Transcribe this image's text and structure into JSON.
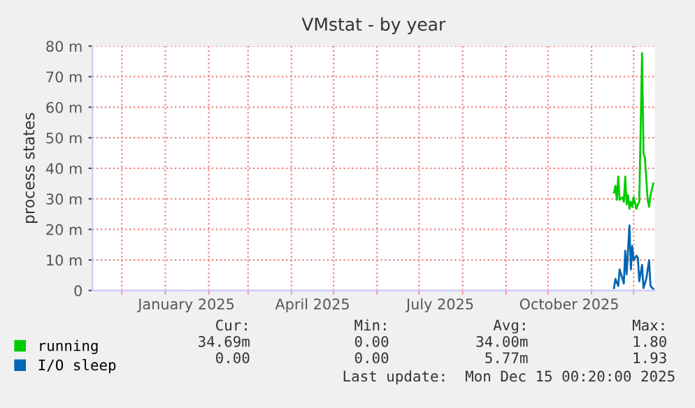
{
  "chart_data": {
    "type": "line",
    "title": "VMstat - by year",
    "ylabel": "process states",
    "xlim": [
      "2024-11-10",
      "2025-12-16"
    ],
    "xticks": [
      {
        "value": "2024-12-01",
        "label": null
      },
      {
        "value": "2025-01-01",
        "label": null
      },
      {
        "value": "2025-01-16",
        "label": "January 2025"
      },
      {
        "value": "2025-02-01",
        "label": null
      },
      {
        "value": "2025-03-01",
        "label": null
      },
      {
        "value": "2025-04-01",
        "label": null
      },
      {
        "value": "2025-04-16",
        "label": "April 2025"
      },
      {
        "value": "2025-05-01",
        "label": null
      },
      {
        "value": "2025-06-01",
        "label": null
      },
      {
        "value": "2025-07-01",
        "label": null
      },
      {
        "value": "2025-07-16",
        "label": "July 2025"
      },
      {
        "value": "2025-08-01",
        "label": null
      },
      {
        "value": "2025-09-01",
        "label": null
      },
      {
        "value": "2025-10-01",
        "label": null
      },
      {
        "value": "2025-10-16",
        "label": "October 2025"
      },
      {
        "value": "2025-11-01",
        "label": null
      },
      {
        "value": "2025-12-01",
        "label": null
      }
    ],
    "ylim": [
      0,
      80
    ],
    "yticks": [
      0,
      {
        "value": 10,
        "label": "10 m"
      },
      {
        "value": 20,
        "label": "20 m"
      },
      {
        "value": 30,
        "label": "30 m"
      },
      {
        "value": 40,
        "label": "40 m"
      },
      {
        "value": 50,
        "label": "50 m"
      },
      {
        "value": 60,
        "label": "60 m"
      },
      {
        "value": 70,
        "label": "70 m"
      },
      {
        "value": 80,
        "label": "80 m"
      }
    ],
    "grid": true,
    "legend": "bottom",
    "series": [
      {
        "name": "running",
        "color": "#00cc00",
        "x": [
          "2025-11-17",
          "2025-11-18",
          "2025-11-19",
          "2025-11-20",
          "2025-11-21",
          "2025-11-23",
          "2025-11-24",
          "2025-11-25",
          "2025-11-26",
          "2025-11-27",
          "2025-11-28",
          "2025-11-29",
          "2025-11-30",
          "2025-12-01",
          "2025-12-03",
          "2025-12-04",
          "2025-12-05",
          "2025-12-07",
          "2025-12-08",
          "2025-12-09",
          "2025-12-11",
          "2025-12-12",
          "2025-12-13",
          "2025-12-15"
        ],
        "values": [
          32,
          34.3,
          29.7,
          37.3,
          29.7,
          30.5,
          29,
          37.3,
          28.2,
          31.2,
          26.7,
          29,
          27.4,
          30.5,
          26.7,
          28.2,
          29,
          77.7,
          45,
          43.4,
          29.7,
          27.4,
          31.2,
          35
        ]
      },
      {
        "name": "I/O sleep",
        "color": "#0066b3",
        "x": [
          "2025-11-17",
          "2025-11-18",
          "2025-11-20",
          "2025-11-21",
          "2025-11-24",
          "2025-11-25",
          "2025-11-26",
          "2025-11-28",
          "2025-11-29",
          "2025-11-30",
          "2025-12-01",
          "2025-12-03",
          "2025-12-04",
          "2025-12-05",
          "2025-12-07",
          "2025-12-08",
          "2025-12-10",
          "2025-12-12",
          "2025-12-13",
          "2025-12-15"
        ],
        "values": [
          0.8,
          3.8,
          1.5,
          6.9,
          2.3,
          13,
          5.3,
          21.3,
          6.9,
          14.5,
          9.9,
          11.4,
          10.7,
          3,
          8.4,
          0.8,
          3.8,
          9.9,
          1.5,
          0.5
        ]
      }
    ],
    "annotations": [
      "Cur:",
      "Min:",
      "Avg:",
      "Max:",
      "34.69m",
      "0.00",
      "34.00m",
      "1.80",
      "0.00",
      "0.00",
      "5.77m",
      "1.93",
      "Last update:  Mon Dec 15 00:20:00 2025"
    ]
  }
}
